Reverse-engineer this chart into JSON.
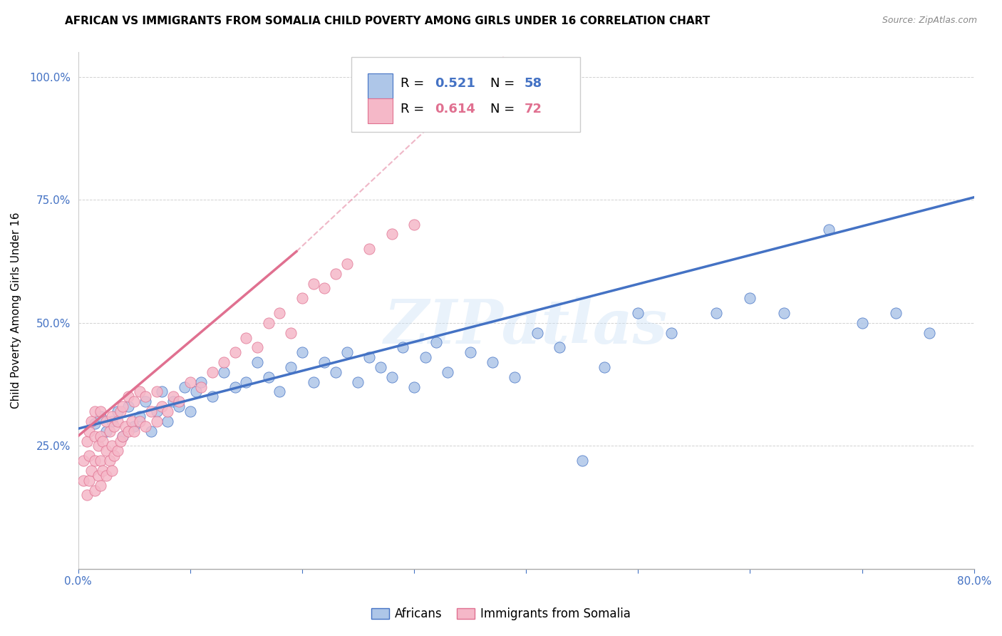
{
  "title": "AFRICAN VS IMMIGRANTS FROM SOMALIA CHILD POVERTY AMONG GIRLS UNDER 16 CORRELATION CHART",
  "source": "Source: ZipAtlas.com",
  "ylabel": "Child Poverty Among Girls Under 16",
  "xlim": [
    0.0,
    0.8
  ],
  "ylim": [
    0.0,
    1.05
  ],
  "xtick_pos": [
    0.0,
    0.1,
    0.2,
    0.3,
    0.4,
    0.5,
    0.6,
    0.7,
    0.8
  ],
  "xticklabels": [
    "0.0%",
    "",
    "",
    "",
    "",
    "",
    "",
    "",
    "80.0%"
  ],
  "ytick_pos": [
    0.0,
    0.25,
    0.5,
    0.75,
    1.0
  ],
  "yticklabels": [
    "",
    "25.0%",
    "50.0%",
    "75.0%",
    "100.0%"
  ],
  "blue_face": "#aec6e8",
  "blue_edge": "#4472c4",
  "pink_face": "#f5b8c8",
  "pink_edge": "#e07090",
  "line_blue_color": "#4472c4",
  "line_pink_color": "#e07090",
  "watermark": "ZIPatlas",
  "r_blue": "0.521",
  "n_blue": "58",
  "r_pink": "0.614",
  "n_pink": "72",
  "label_africans": "Africans",
  "label_somalia": "Immigrants from Somalia",
  "title_fontsize": 11,
  "tick_color": "#4472c4",
  "tick_fontsize": 11,
  "ylabel_fontsize": 11,
  "africans_x": [
    0.015,
    0.02,
    0.025,
    0.03,
    0.035,
    0.04,
    0.045,
    0.05,
    0.055,
    0.06,
    0.065,
    0.07,
    0.075,
    0.08,
    0.085,
    0.09,
    0.095,
    0.1,
    0.105,
    0.11,
    0.12,
    0.13,
    0.14,
    0.15,
    0.16,
    0.17,
    0.18,
    0.19,
    0.2,
    0.21,
    0.22,
    0.23,
    0.24,
    0.25,
    0.26,
    0.27,
    0.28,
    0.29,
    0.3,
    0.31,
    0.32,
    0.33,
    0.35,
    0.37,
    0.39,
    0.41,
    0.43,
    0.45,
    0.47,
    0.5,
    0.53,
    0.57,
    0.6,
    0.63,
    0.67,
    0.7,
    0.73,
    0.76
  ],
  "africans_y": [
    0.295,
    0.31,
    0.28,
    0.3,
    0.32,
    0.27,
    0.33,
    0.29,
    0.31,
    0.34,
    0.28,
    0.32,
    0.36,
    0.3,
    0.34,
    0.33,
    0.37,
    0.32,
    0.36,
    0.38,
    0.35,
    0.4,
    0.37,
    0.38,
    0.42,
    0.39,
    0.36,
    0.41,
    0.44,
    0.38,
    0.42,
    0.4,
    0.44,
    0.38,
    0.43,
    0.41,
    0.39,
    0.45,
    0.37,
    0.43,
    0.46,
    0.4,
    0.44,
    0.42,
    0.39,
    0.48,
    0.45,
    0.22,
    0.41,
    0.52,
    0.48,
    0.52,
    0.55,
    0.52,
    0.69,
    0.5,
    0.52,
    0.48
  ],
  "somalia_x": [
    0.005,
    0.005,
    0.008,
    0.008,
    0.01,
    0.01,
    0.01,
    0.012,
    0.012,
    0.015,
    0.015,
    0.015,
    0.015,
    0.018,
    0.018,
    0.02,
    0.02,
    0.02,
    0.02,
    0.022,
    0.022,
    0.025,
    0.025,
    0.025,
    0.028,
    0.028,
    0.03,
    0.03,
    0.03,
    0.032,
    0.032,
    0.035,
    0.035,
    0.038,
    0.038,
    0.04,
    0.04,
    0.042,
    0.045,
    0.045,
    0.048,
    0.05,
    0.05,
    0.055,
    0.055,
    0.06,
    0.06,
    0.065,
    0.07,
    0.07,
    0.075,
    0.08,
    0.085,
    0.09,
    0.1,
    0.11,
    0.12,
    0.13,
    0.14,
    0.15,
    0.16,
    0.17,
    0.18,
    0.19,
    0.2,
    0.21,
    0.22,
    0.23,
    0.24,
    0.26,
    0.28,
    0.3
  ],
  "somalia_y": [
    0.18,
    0.22,
    0.15,
    0.26,
    0.18,
    0.23,
    0.28,
    0.2,
    0.3,
    0.16,
    0.22,
    0.27,
    0.32,
    0.19,
    0.25,
    0.17,
    0.22,
    0.27,
    0.32,
    0.2,
    0.26,
    0.19,
    0.24,
    0.3,
    0.22,
    0.28,
    0.2,
    0.25,
    0.31,
    0.23,
    0.29,
    0.24,
    0.3,
    0.26,
    0.32,
    0.27,
    0.33,
    0.29,
    0.28,
    0.35,
    0.3,
    0.28,
    0.34,
    0.3,
    0.36,
    0.29,
    0.35,
    0.32,
    0.3,
    0.36,
    0.33,
    0.32,
    0.35,
    0.34,
    0.38,
    0.37,
    0.4,
    0.42,
    0.44,
    0.47,
    0.45,
    0.5,
    0.52,
    0.48,
    0.55,
    0.58,
    0.57,
    0.6,
    0.62,
    0.65,
    0.68,
    0.7
  ]
}
